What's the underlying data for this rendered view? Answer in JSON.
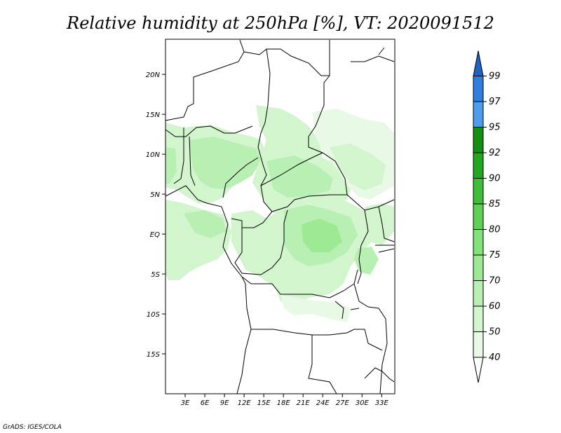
{
  "title": "Relative humidity at 250hPa [%], VT: 2020091512",
  "credit": "GrADS: IGES/COLA",
  "map": {
    "lat_labels": [
      "20N",
      "15N",
      "10N",
      "5N",
      "EQ",
      "5S",
      "10S",
      "15S"
    ],
    "lat_values": [
      20,
      15,
      10,
      5,
      0,
      -5,
      -10,
      -15
    ],
    "lon_labels": [
      "3E",
      "6E",
      "9E",
      "12E",
      "15E",
      "18E",
      "21E",
      "24E",
      "27E",
      "30E",
      "33E"
    ],
    "lon_values": [
      3,
      6,
      9,
      12,
      15,
      18,
      21,
      24,
      27,
      30,
      33
    ],
    "lon_range": [
      0,
      35
    ],
    "lat_range": [
      -20,
      24.4
    ]
  },
  "colorbar": {
    "levels": [
      "40",
      "50",
      "60",
      "70",
      "75",
      "80",
      "85",
      "90",
      "92",
      "95",
      "97",
      "99"
    ],
    "colors": [
      "#e8fae6",
      "#d2f5cd",
      "#b8efb2",
      "#9eea94",
      "#82e27a",
      "#5cd256",
      "#3fbe3a",
      "#22a81f",
      "#138f12",
      "#4c9df0",
      "#2f7fe0",
      "#1f63c8"
    ]
  }
}
